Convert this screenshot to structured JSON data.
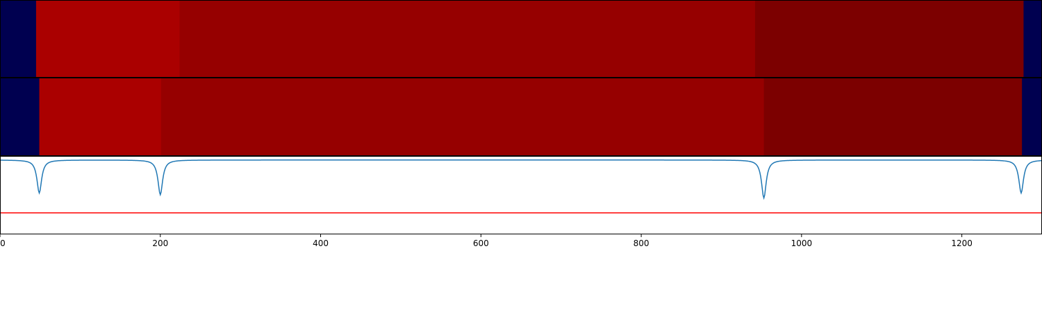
{
  "chart_data": [
    {
      "type": "heatmap",
      "title": "",
      "xlim": [
        0,
        1300
      ],
      "segments": [
        {
          "start": 0,
          "end": 45,
          "color": "#000050"
        },
        {
          "start": 45,
          "end": 224,
          "color": "#aa0000"
        },
        {
          "start": 224,
          "end": 942,
          "color": "#960000"
        },
        {
          "start": 942,
          "end": 1277,
          "color": "#7c0000"
        },
        {
          "start": 1277,
          "end": 1300,
          "color": "#000050"
        }
      ]
    },
    {
      "type": "heatmap",
      "title": "",
      "xlim": [
        0,
        1300
      ],
      "segments": [
        {
          "start": 0,
          "end": 49,
          "color": "#000050"
        },
        {
          "start": 49,
          "end": 201,
          "color": "#aa0000"
        },
        {
          "start": 201,
          "end": 953,
          "color": "#960000"
        },
        {
          "start": 953,
          "end": 1275,
          "color": "#7c0000"
        },
        {
          "start": 1275,
          "end": 1300,
          "color": "#000050"
        }
      ]
    },
    {
      "type": "line",
      "title": "",
      "xlabel": "",
      "ylabel": "",
      "xlim": [
        0,
        1300
      ],
      "ylim": [
        -0.45,
        0.02
      ],
      "xticks": [
        0,
        200,
        400,
        600,
        800,
        1000,
        1200
      ],
      "xtick_labels": [
        "0",
        "200",
        "400",
        "600",
        "800",
        "1000",
        "1200"
      ],
      "threshold": {
        "y": -0.32,
        "color": "#ff0000"
      },
      "series": [
        {
          "color": "#1f77b4",
          "dips": [
            {
              "center": 49,
              "depth": 0.2,
              "width": 3.5
            },
            {
              "center": 200,
              "depth": 0.21,
              "width": 3.5
            },
            {
              "center": 953,
              "depth": 0.23,
              "width": 3.5
            },
            {
              "center": 1274,
              "depth": 0.2,
              "width": 3.5
            }
          ],
          "baseline": 0.0
        }
      ]
    }
  ]
}
